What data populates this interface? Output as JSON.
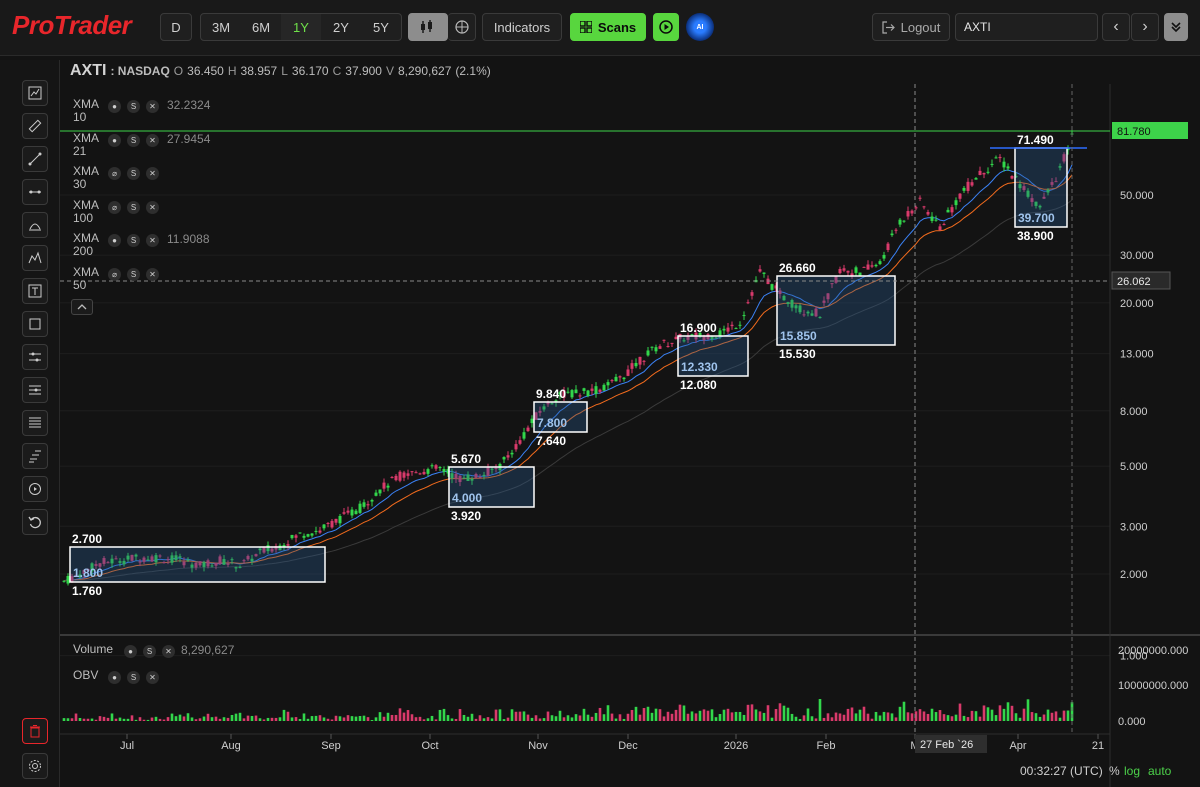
{
  "brand": {
    "logo_text": "ProTrader",
    "accent": "#e8262b"
  },
  "topbar": {
    "interval_label": "D",
    "ranges": [
      {
        "label": "3M"
      },
      {
        "label": "6M"
      },
      {
        "label": "1Y",
        "active": true
      },
      {
        "label": "2Y"
      },
      {
        "label": "5Y"
      }
    ],
    "indicators_label": "Indicators",
    "scans_label": "Scans",
    "ai_label": "AI",
    "logout_label": "Logout",
    "search_value": "AXTI",
    "prev_glyph": "‹",
    "next_glyph": "›"
  },
  "quote": {
    "symbol": "AXTI",
    "exchange": ": NASDAQ",
    "open_label": "O",
    "open": "36.450",
    "high_label": "H",
    "high": "38.957",
    "low_label": "L",
    "low": "36.170",
    "close_label": "C",
    "close": "37.900",
    "volume_label": "V",
    "volume": "8,290,627",
    "change": "(2.1%)"
  },
  "indicators": [
    {
      "name": "XMA",
      "period": "10",
      "value": "32.2324",
      "visible": true
    },
    {
      "name": "XMA",
      "period": "21",
      "value": "27.9454",
      "visible": true
    },
    {
      "name": "XMA",
      "period": "30",
      "value": "",
      "visible": false
    },
    {
      "name": "XMA",
      "period": "100",
      "value": "",
      "visible": false
    },
    {
      "name": "XMA",
      "period": "200",
      "value": "11.9088",
      "visible": true
    },
    {
      "name": "XMA",
      "period": "50",
      "value": "",
      "visible": false
    }
  ],
  "lower_pane": {
    "volume_label": "Volume",
    "volume_value": "8,290,627",
    "obv_label": "OBV"
  },
  "axis": {
    "price_ticks": [
      "50.000",
      "30.000",
      "20.000",
      "13.000",
      "8.000",
      "5.000",
      "3.000",
      "2.000",
      "1.000"
    ],
    "last_price": "81.780",
    "crosshair_price": "26.062",
    "volume_ticks": [
      "20000000.000",
      "10000000.000",
      "0.000"
    ],
    "x_ticks": [
      "Jul",
      "Aug",
      "Sep",
      "Oct",
      "Nov",
      "Dec",
      "2026",
      "Feb",
      "M",
      "Apr",
      "21"
    ],
    "crosshair_date": "27 Feb `26"
  },
  "boxes": [
    {
      "top": "2.700",
      "inner": "1.800",
      "bottom": "1.760"
    },
    {
      "top": "5.670",
      "inner": "4.000",
      "bottom": "3.920"
    },
    {
      "top": "9.840",
      "inner": "7.800",
      "bottom": "7.640"
    },
    {
      "top": "16.900",
      "inner": "12.330",
      "bottom": "12.080"
    },
    {
      "top": "26.660",
      "inner": "15.850",
      "bottom": "15.530"
    },
    {
      "top": "71.490",
      "inner": "39.700",
      "bottom": "38.900"
    }
  ],
  "chart_data": {
    "type": "candlestick",
    "scale": "log",
    "ylim": [
      1,
      100
    ],
    "up_color": "#32d74b",
    "down_color": "#d93a6b",
    "price_path": [
      [
        0,
        1.85
      ],
      [
        20,
        2.0
      ],
      [
        40,
        2.2
      ],
      [
        60,
        2.25
      ],
      [
        80,
        2.3
      ],
      [
        100,
        2.3
      ],
      [
        120,
        2.25
      ],
      [
        140,
        2.15
      ],
      [
        160,
        2.25
      ],
      [
        180,
        2.15
      ],
      [
        200,
        2.4
      ],
      [
        220,
        2.55
      ],
      [
        240,
        2.8
      ],
      [
        260,
        2.9
      ],
      [
        280,
        3.2
      ],
      [
        300,
        3.5
      ],
      [
        320,
        4.1
      ],
      [
        340,
        4.6
      ],
      [
        360,
        4.8
      ],
      [
        380,
        4.9
      ],
      [
        400,
        4.5
      ],
      [
        420,
        4.6
      ],
      [
        440,
        5.0
      ],
      [
        460,
        6.2
      ],
      [
        480,
        8.0
      ],
      [
        500,
        9.2
      ],
      [
        520,
        9.3
      ],
      [
        540,
        9.6
      ],
      [
        560,
        10.5
      ],
      [
        580,
        12.3
      ],
      [
        600,
        14.0
      ],
      [
        620,
        14.8
      ],
      [
        640,
        15.1
      ],
      [
        660,
        15.4
      ],
      [
        680,
        17.0
      ],
      [
        700,
        26.0
      ],
      [
        720,
        21.5
      ],
      [
        740,
        19.0
      ],
      [
        760,
        18.2
      ],
      [
        780,
        26.5
      ],
      [
        800,
        26.0
      ],
      [
        820,
        28.0
      ],
      [
        840,
        40.0
      ],
      [
        860,
        47.0
      ],
      [
        880,
        38.0
      ],
      [
        900,
        50.0
      ],
      [
        920,
        60.0
      ],
      [
        940,
        68.0
      ],
      [
        960,
        55.0
      ],
      [
        980,
        45.0
      ],
      [
        1000,
        62.0
      ],
      [
        1012,
        81.78
      ]
    ]
  },
  "status": {
    "time": "00:32:27 (UTC)",
    "pct": "%",
    "log": "log",
    "auto": "auto"
  }
}
